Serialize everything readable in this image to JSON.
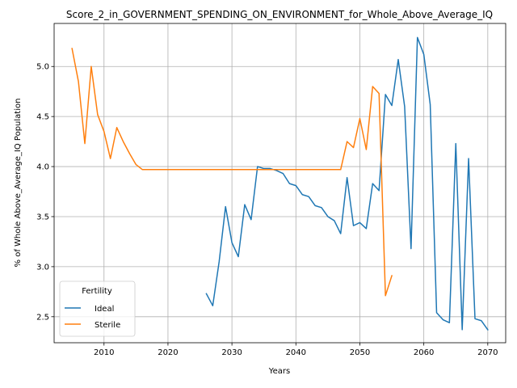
{
  "chart_data": {
    "type": "line",
    "title": "Score_2_in_GOVERNMENT_SPENDING_ON_ENVIRONMENT_for_Whole_Above_Average_IQ",
    "xlabel": "Years",
    "ylabel": "% of Whole Above_Average_IQ Population",
    "xlim": [
      2002.2,
      2072.8
    ],
    "ylim": [
      2.24,
      5.43
    ],
    "xticks": [
      2010,
      2020,
      2030,
      2040,
      2050,
      2060,
      2070
    ],
    "yticks": [
      2.5,
      3.0,
      3.5,
      4.0,
      4.5,
      5.0
    ],
    "ytick_labels": [
      "2.5",
      "3.0",
      "3.5",
      "4.0",
      "4.5",
      "5.0"
    ],
    "grid": true,
    "legend": {
      "title": "Fertility",
      "placement": "lower-left"
    },
    "series": [
      {
        "name": "Ideal",
        "color": "#1f77b4",
        "points": [
          [
            2026,
            2.73
          ],
          [
            2027,
            2.61
          ],
          [
            2028,
            3.05
          ],
          [
            2029,
            3.6
          ],
          [
            2030,
            3.24
          ],
          [
            2031,
            3.1
          ],
          [
            2032,
            3.62
          ],
          [
            2033,
            3.47
          ],
          [
            2034,
            4.0
          ],
          [
            2035,
            3.98
          ],
          [
            2036,
            3.98
          ],
          [
            2037,
            3.96
          ],
          [
            2038,
            3.93
          ],
          [
            2039,
            3.83
          ],
          [
            2040,
            3.81
          ],
          [
            2041,
            3.72
          ],
          [
            2042,
            3.7
          ],
          [
            2043,
            3.61
          ],
          [
            2044,
            3.59
          ],
          [
            2045,
            3.5
          ],
          [
            2046,
            3.46
          ],
          [
            2047,
            3.33
          ],
          [
            2048,
            3.89
          ],
          [
            2049,
            3.41
          ],
          [
            2050,
            3.44
          ],
          [
            2051,
            3.38
          ],
          [
            2052,
            3.83
          ],
          [
            2053,
            3.76
          ],
          [
            2054,
            4.72
          ],
          [
            2055,
            4.61
          ],
          [
            2056,
            5.07
          ],
          [
            2057,
            4.6
          ],
          [
            2058,
            3.18
          ],
          [
            2059,
            5.29
          ],
          [
            2060,
            5.12
          ],
          [
            2061,
            4.62
          ],
          [
            2062,
            2.54
          ],
          [
            2063,
            2.47
          ],
          [
            2064,
            2.44
          ],
          [
            2065,
            4.23
          ],
          [
            2066,
            2.37
          ],
          [
            2067,
            4.08
          ],
          [
            2068,
            2.48
          ],
          [
            2069,
            2.46
          ],
          [
            2070,
            2.37
          ]
        ]
      },
      {
        "name": "Sterile",
        "color": "#ff7f0e",
        "points": [
          [
            2005,
            5.18
          ],
          [
            2006,
            4.85
          ],
          [
            2007,
            4.23
          ],
          [
            2008,
            5.0
          ],
          [
            2009,
            4.52
          ],
          [
            2010,
            4.35
          ],
          [
            2011,
            4.08
          ],
          [
            2012,
            4.39
          ],
          [
            2013,
            4.25
          ],
          [
            2014,
            4.13
          ],
          [
            2015,
            4.02
          ],
          [
            2016,
            3.97
          ],
          [
            2020,
            3.97
          ],
          [
            2030,
            3.97
          ],
          [
            2040,
            3.97
          ],
          [
            2047,
            3.97
          ],
          [
            2048,
            4.25
          ],
          [
            2049,
            4.19
          ],
          [
            2050,
            4.48
          ],
          [
            2051,
            4.17
          ],
          [
            2052,
            4.8
          ],
          [
            2053,
            4.73
          ],
          [
            2054,
            2.71
          ],
          [
            2055,
            2.91
          ]
        ]
      }
    ]
  }
}
